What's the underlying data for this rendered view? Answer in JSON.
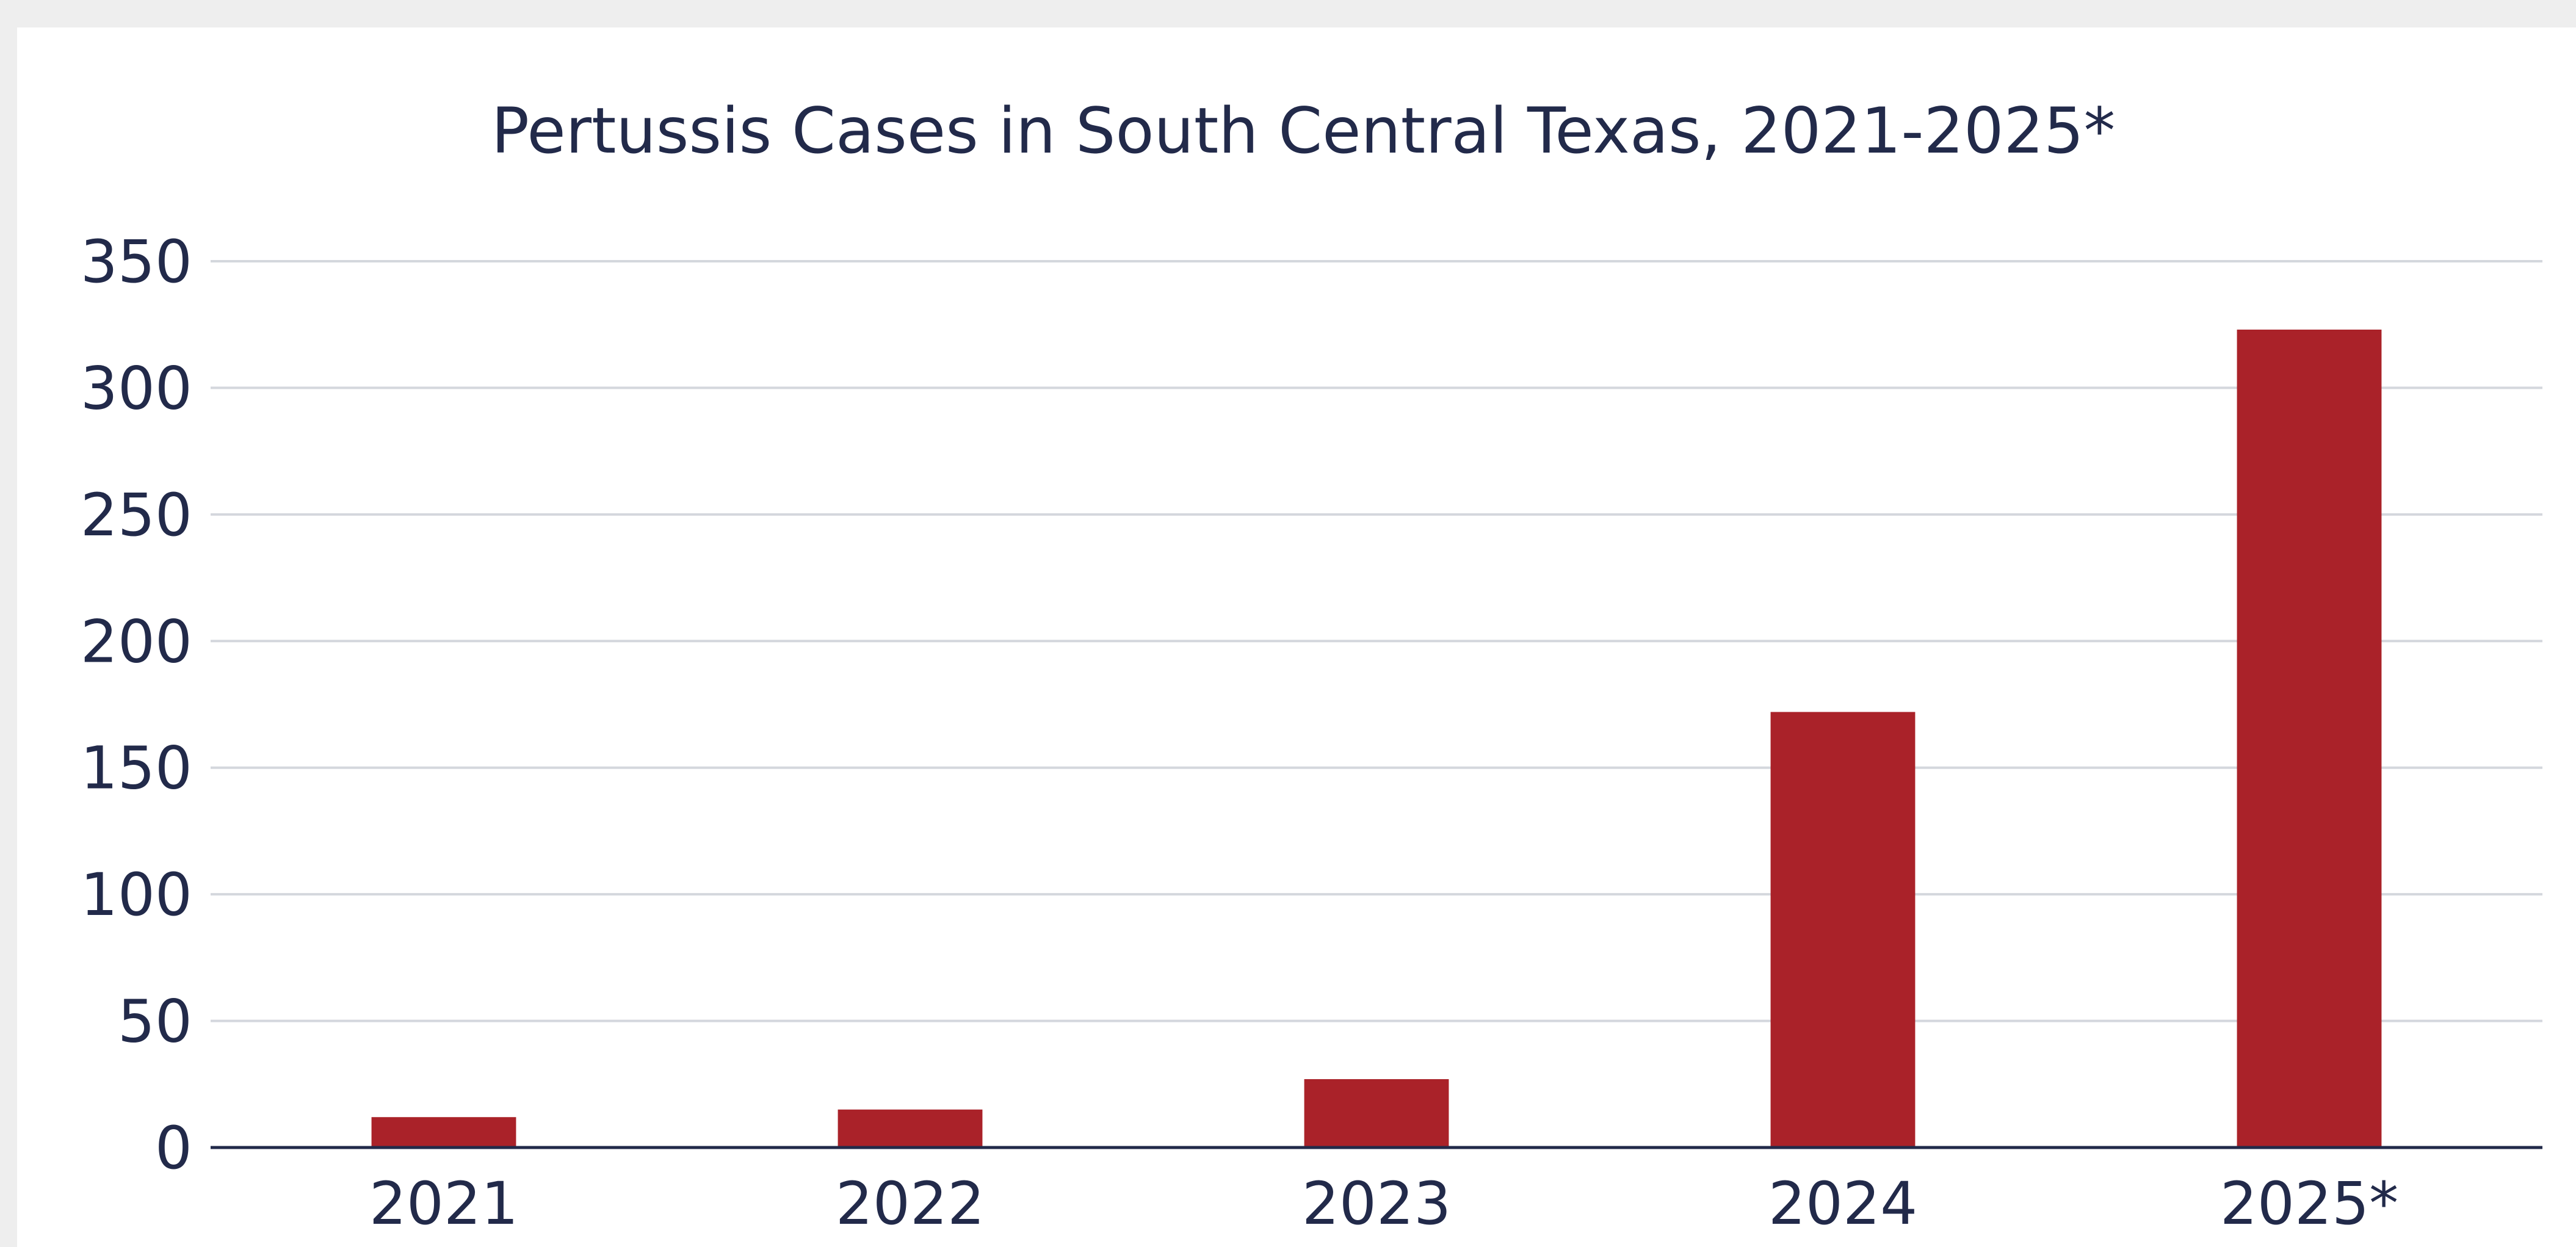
{
  "chart_data": {
    "type": "bar",
    "title": "Pertussis Cases in South Central Texas, 2021-2025*",
    "xlabel": "",
    "ylabel": "",
    "categories": [
      "2021",
      "2022",
      "2023",
      "2024",
      "2025*"
    ],
    "values": [
      12,
      15,
      27,
      172,
      323
    ],
    "ylim": [
      0,
      350
    ],
    "yticks": [
      0,
      50,
      100,
      150,
      200,
      250,
      300,
      350
    ],
    "ytick_labels": [
      "0",
      "50",
      "100",
      "150",
      "200",
      "250",
      "300",
      "350"
    ],
    "grid": true,
    "legend": "none",
    "bar_color": "#aa2229",
    "grid_color": "#d4d7dd",
    "axis_color": "#222a4a"
  }
}
